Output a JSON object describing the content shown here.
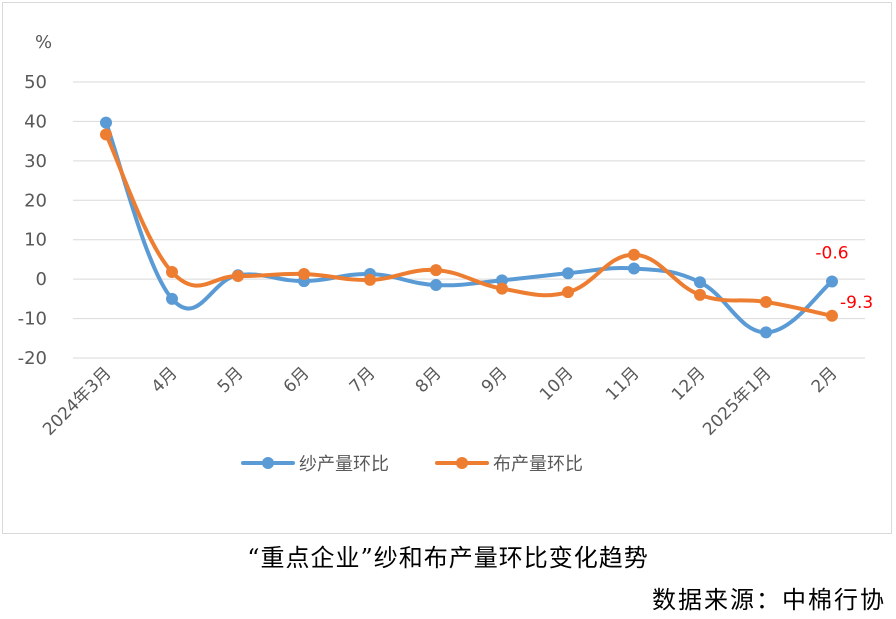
{
  "chart_data": {
    "type": "line",
    "unit_label": "%",
    "categories": [
      "2024年3月",
      "4月",
      "5月",
      "6月",
      "7月",
      "8月",
      "9月",
      "10月",
      "11月",
      "12月",
      "2025年1月",
      "2月"
    ],
    "series": [
      {
        "name": "纱产量环比",
        "color": "#5b9bd5",
        "values": [
          39.7,
          -5.0,
          1.0,
          -0.5,
          1.3,
          -1.5,
          -0.3,
          1.5,
          2.7,
          -0.8,
          -13.5,
          -0.6
        ],
        "labels": [
          "",
          "",
          "",
          "",
          "",
          "",
          "",
          "",
          "",
          "",
          "",
          "-0.6"
        ]
      },
      {
        "name": "布产量环比",
        "color": "#ed7d31",
        "values": [
          36.7,
          1.8,
          0.8,
          1.3,
          -0.2,
          2.3,
          -2.4,
          -3.3,
          6.2,
          -4.0,
          -5.8,
          -9.3
        ],
        "labels": [
          "",
          "",
          "",
          "",
          "",
          "",
          "",
          "",
          "",
          "",
          "",
          "-9.3"
        ]
      }
    ],
    "yticks": [
      50,
      40,
      30,
      20,
      10,
      0,
      -10,
      -20
    ],
    "ylim": [
      -20,
      50
    ],
    "grid": true,
    "legend_position": "bottom",
    "smooth": true
  },
  "caption": "“重点企业”纱和布产量环比变化趋势",
  "source": "数据来源：中棉行协",
  "label_color": "#ff0000",
  "gridline_color": "#d9d9d9",
  "text_color": "#595959"
}
